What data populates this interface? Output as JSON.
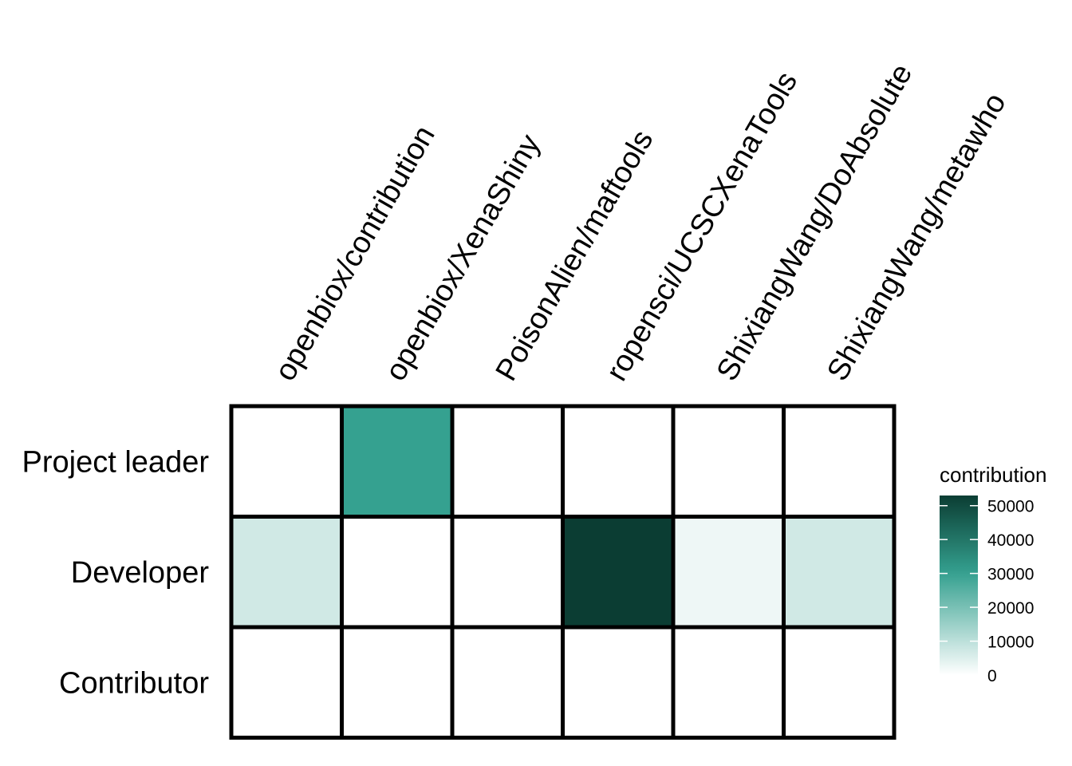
{
  "chart_data": {
    "type": "heatmap",
    "columns": [
      "openbiox/contribution",
      "openbiox/XenaShiny",
      "PoisonAlien/maftools",
      "ropensci/UCSCXenaTools",
      "ShixiangWang/DoAbsolute",
      "ShixiangWang/metawho"
    ],
    "rows": [
      "Project leader",
      "Developer",
      "Contributor"
    ],
    "values": [
      [
        0,
        30000,
        0,
        0,
        0,
        0
      ],
      [
        7000,
        0,
        0,
        53000,
        2500,
        7000
      ],
      [
        0,
        0,
        0,
        0,
        0,
        0
      ]
    ],
    "legend": {
      "title": "contribution",
      "ticks": [
        0,
        10000,
        20000,
        30000,
        40000,
        50000
      ],
      "min": 0,
      "max": 53000,
      "position": "right"
    },
    "colors": {
      "low": "#ffffff",
      "high": "#0b3d33",
      "grid": "#000000"
    }
  }
}
